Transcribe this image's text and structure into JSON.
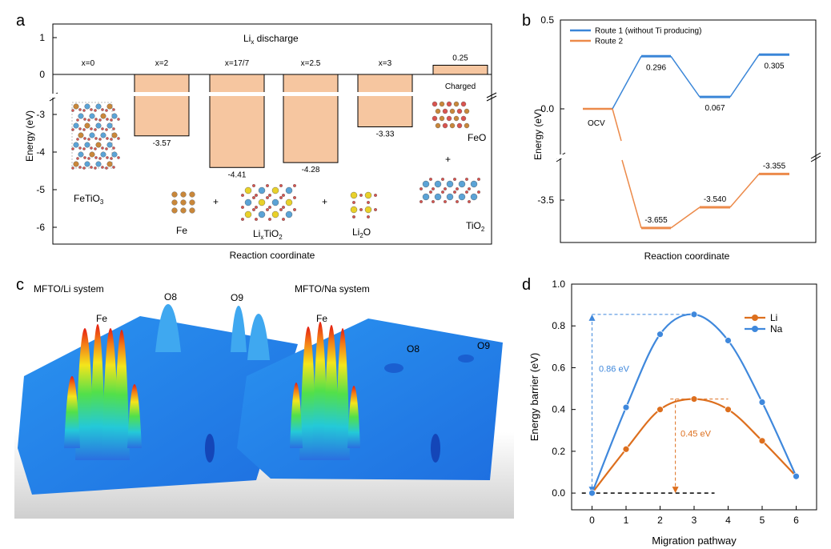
{
  "chart_data": [
    {
      "panel": "a",
      "type": "bar",
      "title": "Li",
      "title_sub": "x",
      "title_rest": " discharge",
      "xlabel": "Reaction coordinate",
      "ylabel": "Energy (eV)",
      "yticks": [
        "1",
        "0",
        "-3",
        "-4",
        "-5",
        "-6"
      ],
      "categories": [
        "x=0",
        "x=2",
        "x=17/7",
        "x=2.5",
        "x=3",
        "Charged"
      ],
      "values": [
        0,
        -3.57,
        -4.41,
        -4.28,
        -3.33,
        0.25
      ],
      "value_labels": [
        "",
        "-3.57",
        "-4.41",
        "-4.28",
        "-3.33",
        "0.25"
      ],
      "bar_color": "#f6c6a0",
      "labels": {
        "fetio3": "FeTiO",
        "fetio3_sub": "3",
        "fe": "Fe",
        "plus": "+",
        "lixtio2_a": "Li",
        "lixtio2_b": "x",
        "lixtio2_c": "TiO",
        "lixtio2_d": "2",
        "li2o_a": "Li",
        "li2o_b": "2",
        "li2o_c": "O",
        "feo": "FeO",
        "tio2_a": "TiO",
        "tio2_b": "2"
      }
    },
    {
      "panel": "b",
      "type": "line",
      "xlabel": "Reaction coordinate",
      "ylabel": "Energy (eV)",
      "yticks": [
        "0.5",
        "0.0",
        "-3.5"
      ],
      "ocv_label": "OCV",
      "series": [
        {
          "name": "Route 1 (without Ti producing)",
          "color": "#3a86d8",
          "values": [
            0,
            0.296,
            0.067,
            0.305
          ],
          "labels": [
            "",
            "0.296",
            "0.067",
            "0.305"
          ]
        },
        {
          "name": "Route 2",
          "color": "#ec8a4a",
          "values": [
            0,
            -3.655,
            -3.54,
            -3.355
          ],
          "labels": [
            "",
            "-3.655",
            "-3.540",
            "-3.355"
          ]
        }
      ]
    },
    {
      "panel": "c",
      "type": "heatmap",
      "left_title": "MFTO/Li system",
      "right_title": "MFTO/Na system",
      "left_labels": [
        "Fe",
        "O8",
        "O9"
      ],
      "right_labels": [
        "Fe",
        "O8",
        "O9"
      ]
    },
    {
      "panel": "d",
      "type": "line",
      "xlabel": "Migration pathway",
      "ylabel": "Energy barrier (eV)",
      "x": [
        0,
        1,
        2,
        3,
        4,
        5,
        6
      ],
      "xlim": [
        -0.6,
        6.6
      ],
      "ylim": [
        -0.08,
        1.0
      ],
      "yticks": [
        0.0,
        0.2,
        0.4,
        0.6,
        0.8,
        1.0
      ],
      "series": [
        {
          "name": "Li",
          "color": "#dd6f1e",
          "values": [
            0.0,
            0.21,
            0.4,
            0.45,
            0.4,
            0.25,
            0.08
          ]
        },
        {
          "name": "Na",
          "color": "#3f88dc",
          "values": [
            0.0,
            0.41,
            0.76,
            0.855,
            0.73,
            0.435,
            0.08
          ]
        }
      ],
      "annotations": {
        "na": "0.86 eV",
        "li": "0.45 eV"
      }
    }
  ],
  "panel_letters": [
    "a",
    "b",
    "c",
    "d"
  ]
}
